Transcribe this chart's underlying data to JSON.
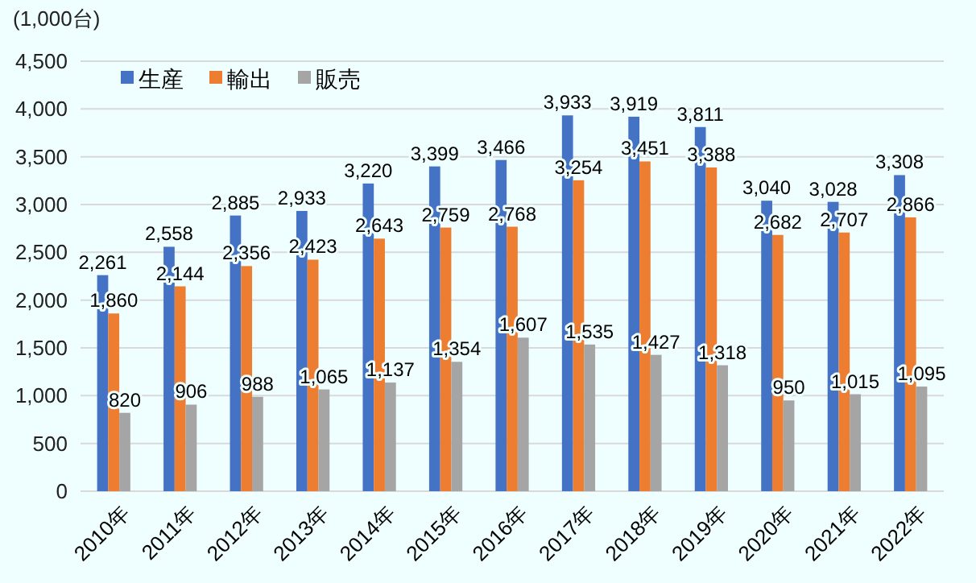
{
  "chart_data": {
    "type": "bar",
    "ylabel": "(1,000台)",
    "categories": [
      "2010年",
      "2011年",
      "2012年",
      "2013年",
      "2014年",
      "2015年",
      "2016年",
      "2017年",
      "2018年",
      "2019年",
      "2020年",
      "2021年",
      "2022年"
    ],
    "series": [
      {
        "name": "生産",
        "color": "#4472c4",
        "values": [
          2261,
          2558,
          2885,
          2933,
          3220,
          3399,
          3466,
          3933,
          3919,
          3811,
          3040,
          3028,
          3308
        ],
        "value_labels": [
          "2,261",
          "2,558",
          "2,885",
          "2,933",
          "3,220",
          "3,399",
          "3,466",
          "3,933",
          "3,919",
          "3,811",
          "3,040",
          "3,028",
          "3,308"
        ]
      },
      {
        "name": "輸出",
        "color": "#ed7d31",
        "values": [
          1860,
          2144,
          2356,
          2423,
          2643,
          2759,
          2768,
          3254,
          3451,
          3388,
          2682,
          2707,
          2866
        ],
        "value_labels": [
          "1,860",
          "2,144",
          "2,356",
          "2,423",
          "2,643",
          "2,759",
          "2,768",
          "3,254",
          "3,451",
          "3,388",
          "2,682",
          "2,707",
          "2,866"
        ]
      },
      {
        "name": "販売",
        "color": "#a5a5a5",
        "values": [
          820,
          906,
          988,
          1065,
          1137,
          1354,
          1607,
          1535,
          1427,
          1318,
          950,
          1015,
          1095
        ],
        "value_labels": [
          "820",
          "906",
          "988",
          "1,065",
          "1,137",
          "1,354",
          "1,607",
          "1,535",
          "1,427",
          "1,318",
          "950",
          "1,015",
          "1,095"
        ]
      }
    ],
    "ylim": [
      0,
      4500
    ],
    "yticks": [
      0,
      {
        "value": 500,
        "label": "500"
      },
      {
        "value": 1000,
        "label": "1,000"
      },
      {
        "value": 1500,
        "label": "1,500"
      },
      {
        "value": 2000,
        "label": "2,000"
      },
      {
        "value": 2500,
        "label": "2,500"
      },
      {
        "value": 3000,
        "label": "3,000"
      },
      {
        "value": 3500,
        "label": "3,500"
      },
      {
        "value": 4000,
        "label": "4,000"
      },
      {
        "value": 4500,
        "label": "4,500"
      }
    ],
    "grid": "y",
    "legend": "top left"
  }
}
